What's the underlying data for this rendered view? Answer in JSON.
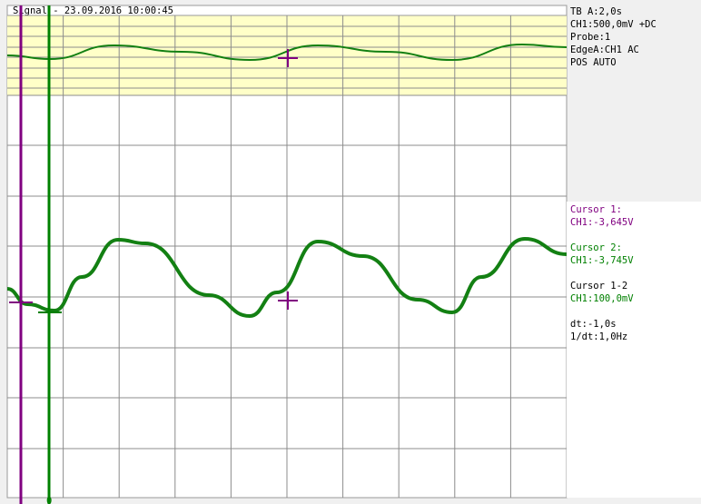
{
  "window": {
    "title": "Signal - 23.09.2016 10:00:45"
  },
  "settings": {
    "timebase": "TB A:2,0s",
    "channel": "CH1:500,0mV +DC",
    "probe": "Probe:1",
    "trigger": "EdgeA:CH1 AC",
    "mode": "POS AUTO"
  },
  "cursors": {
    "cursor1_label": "Cursor 1:",
    "cursor1_value": "CH1:-3,645V",
    "cursor2_label": "Cursor 2:",
    "cursor2_value": "CH1:-3,745V",
    "diff_label": "Cursor 1-2",
    "diff_value": "CH1:100,0mV",
    "dt": "dt:-1,0s",
    "inv_dt": "1/dt:1,0Hz"
  },
  "colors": {
    "trace": "#138013",
    "cursor1": "#800080",
    "cursor2": "#008000",
    "overview_bg": "#ffffc8",
    "grid": "#8c8c8c"
  },
  "markers": {
    "cursor2_bottom": "0"
  }
}
